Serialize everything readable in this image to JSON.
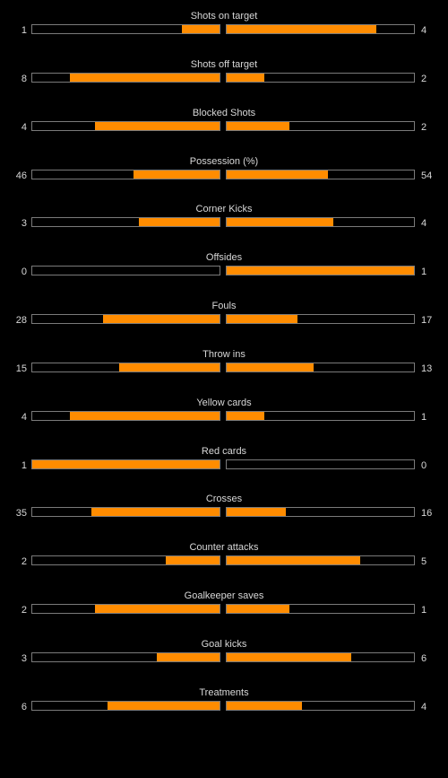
{
  "colors": {
    "background": "#000000",
    "bar_fill": "#ff8c00",
    "bar_border": "#7a7a7a",
    "text": "#d8d8d8"
  },
  "stats": [
    {
      "label": "Shots on target",
      "home": "1",
      "away": "4",
      "home_fraction": 0.2,
      "away_fraction": 0.8
    },
    {
      "label": "Shots off target",
      "home": "8",
      "away": "2",
      "home_fraction": 0.8,
      "away_fraction": 0.2
    },
    {
      "label": "Blocked Shots",
      "home": "4",
      "away": "2",
      "home_fraction": 0.667,
      "away_fraction": 0.333
    },
    {
      "label": "Possession (%)",
      "home": "46",
      "away": "54",
      "home_fraction": 0.46,
      "away_fraction": 0.54
    },
    {
      "label": "Corner Kicks",
      "home": "3",
      "away": "4",
      "home_fraction": 0.429,
      "away_fraction": 0.571
    },
    {
      "label": "Offsides",
      "home": "0",
      "away": "1",
      "home_fraction": 0.0,
      "away_fraction": 1.0
    },
    {
      "label": "Fouls",
      "home": "28",
      "away": "17",
      "home_fraction": 0.622,
      "away_fraction": 0.378
    },
    {
      "label": "Throw ins",
      "home": "15",
      "away": "13",
      "home_fraction": 0.536,
      "away_fraction": 0.464
    },
    {
      "label": "Yellow cards",
      "home": "4",
      "away": "1",
      "home_fraction": 0.8,
      "away_fraction": 0.2
    },
    {
      "label": "Red cards",
      "home": "1",
      "away": "0",
      "home_fraction": 1.0,
      "away_fraction": 0.0
    },
    {
      "label": "Crosses",
      "home": "35",
      "away": "16",
      "home_fraction": 0.686,
      "away_fraction": 0.314
    },
    {
      "label": "Counter attacks",
      "home": "2",
      "away": "5",
      "home_fraction": 0.286,
      "away_fraction": 0.714
    },
    {
      "label": "Goalkeeper saves",
      "home": "2",
      "away": "1",
      "home_fraction": 0.667,
      "away_fraction": 0.333
    },
    {
      "label": "Goal kicks",
      "home": "3",
      "away": "6",
      "home_fraction": 0.333,
      "away_fraction": 0.667
    },
    {
      "label": "Treatments",
      "home": "6",
      "away": "4",
      "home_fraction": 0.6,
      "away_fraction": 0.4
    }
  ]
}
